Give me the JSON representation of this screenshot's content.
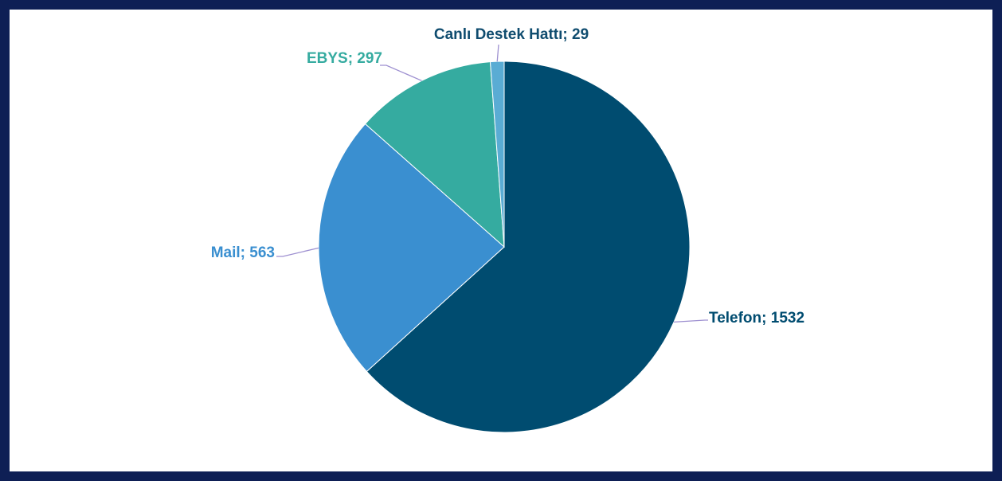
{
  "chart_data": {
    "type": "pie",
    "values": [
      1532,
      563,
      297,
      29
    ],
    "value_labels": [
      "Telefon; 1532",
      "Mail; 563",
      "EBYS; 297",
      "Canlı Destek Hattı; 29"
    ],
    "colors": [
      "#004c70",
      "#3a8fd0",
      "#35aba0",
      "#5aacd4"
    ],
    "label_colors": [
      "#004c70",
      "#3a8fd0",
      "#35aba0",
      "#0f4c6f"
    ]
  }
}
